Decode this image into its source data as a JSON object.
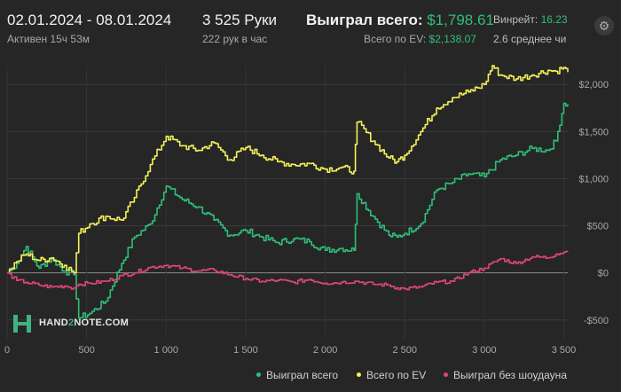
{
  "header": {
    "date_range": "02.01.2024 - 08.01.2024",
    "active": "Активен 15ч 53м",
    "hands": "3 525 Руки",
    "hands_rate": "222 рук в час",
    "won_label": "Выиграл всего:",
    "won_value": "$1,798.61",
    "ev_label": "Всего по EV:",
    "ev_value": "$2,138.07",
    "winrate_label": "Винрейт:",
    "winrate_value": "16.23",
    "avg_text": "2.6 среднее чи"
  },
  "icons": {
    "settings": "gear-icon"
  },
  "logo": {
    "text_a": "HAND",
    "text_b": "2",
    "text_c": "NOTE.COM"
  },
  "legend": [
    {
      "label": "Выиграл всего",
      "color": "#2fbf78"
    },
    {
      "label": "Всего по EV",
      "color": "#f5f05a"
    },
    {
      "label": "Выиграл без шоудауна",
      "color": "#e0457e"
    }
  ],
  "chart_data": {
    "type": "line",
    "xlim": [
      0,
      3525
    ],
    "ylim": [
      -700,
      2200
    ],
    "x_ticks": [
      0,
      500,
      1000,
      1500,
      2000,
      2500,
      3000,
      3500
    ],
    "x_tick_labels": [
      "0",
      "500",
      "1 000",
      "1 500",
      "2 000",
      "2 500",
      "3 000",
      "3 500"
    ],
    "y_ticks": [
      -500,
      0,
      500,
      1000,
      1500,
      2000
    ],
    "y_tick_labels": [
      "-$500",
      "$0",
      "$500",
      "$1,000",
      "$1,500",
      "$2,000"
    ],
    "grid": true,
    "series": [
      {
        "name": "Выиграл всего",
        "color": "#2fbf78",
        "x": [
          0,
          60,
          120,
          200,
          280,
          360,
          420,
          450,
          520,
          620,
          720,
          800,
          900,
          1000,
          1100,
          1200,
          1300,
          1400,
          1500,
          1600,
          1700,
          1800,
          1900,
          2000,
          2100,
          2180,
          2200,
          2300,
          2400,
          2450,
          2500,
          2600,
          2700,
          2800,
          2900,
          3000,
          3100,
          3200,
          3300,
          3400,
          3450,
          3500,
          3525
        ],
        "y": [
          0,
          100,
          280,
          50,
          150,
          20,
          -20,
          -480,
          -430,
          -300,
          100,
          380,
          520,
          920,
          780,
          700,
          560,
          400,
          450,
          380,
          320,
          360,
          330,
          240,
          260,
          240,
          840,
          600,
          400,
          380,
          420,
          520,
          880,
          960,
          1050,
          1020,
          1200,
          1250,
          1320,
          1300,
          1400,
          1800,
          1790
        ]
      },
      {
        "name": "Всего по EV",
        "color": "#f5f05a",
        "x": [
          0,
          60,
          120,
          200,
          280,
          360,
          420,
          450,
          520,
          620,
          720,
          800,
          900,
          1000,
          1100,
          1200,
          1300,
          1400,
          1500,
          1600,
          1700,
          1800,
          1900,
          2000,
          2100,
          2180,
          2200,
          2300,
          2400,
          2450,
          2500,
          2600,
          2700,
          2800,
          2900,
          3000,
          3050,
          3100,
          3200,
          3300,
          3400,
          3450,
          3500,
          3525
        ],
        "y": [
          0,
          120,
          200,
          130,
          160,
          80,
          0,
          420,
          520,
          600,
          560,
          800,
          1150,
          1450,
          1350,
          1300,
          1380,
          1200,
          1330,
          1250,
          1180,
          1150,
          1160,
          1100,
          1120,
          1080,
          1600,
          1400,
          1220,
          1180,
          1250,
          1500,
          1750,
          1860,
          1920,
          2000,
          2200,
          2100,
          2060,
          2100,
          2150,
          2140,
          2180,
          2130
        ]
      },
      {
        "name": "Выиграл без шоудауна",
        "color": "#e0457e",
        "x": [
          0,
          60,
          120,
          200,
          280,
          360,
          420,
          450,
          520,
          620,
          720,
          800,
          900,
          1000,
          1100,
          1200,
          1300,
          1400,
          1500,
          1600,
          1700,
          1800,
          1900,
          2000,
          2100,
          2200,
          2300,
          2400,
          2450,
          2500,
          2600,
          2700,
          2800,
          2900,
          3000,
          3100,
          3200,
          3300,
          3400,
          3450,
          3500,
          3525
        ],
        "y": [
          0,
          -80,
          -100,
          -130,
          -150,
          -140,
          -160,
          -120,
          -110,
          -90,
          -30,
          0,
          60,
          80,
          50,
          20,
          30,
          -20,
          -60,
          -90,
          -80,
          -100,
          -70,
          -110,
          -100,
          -90,
          -120,
          -130,
          -160,
          -170,
          -150,
          -100,
          -90,
          0,
          50,
          150,
          100,
          170,
          160,
          200,
          220,
          230
        ]
      }
    ]
  }
}
